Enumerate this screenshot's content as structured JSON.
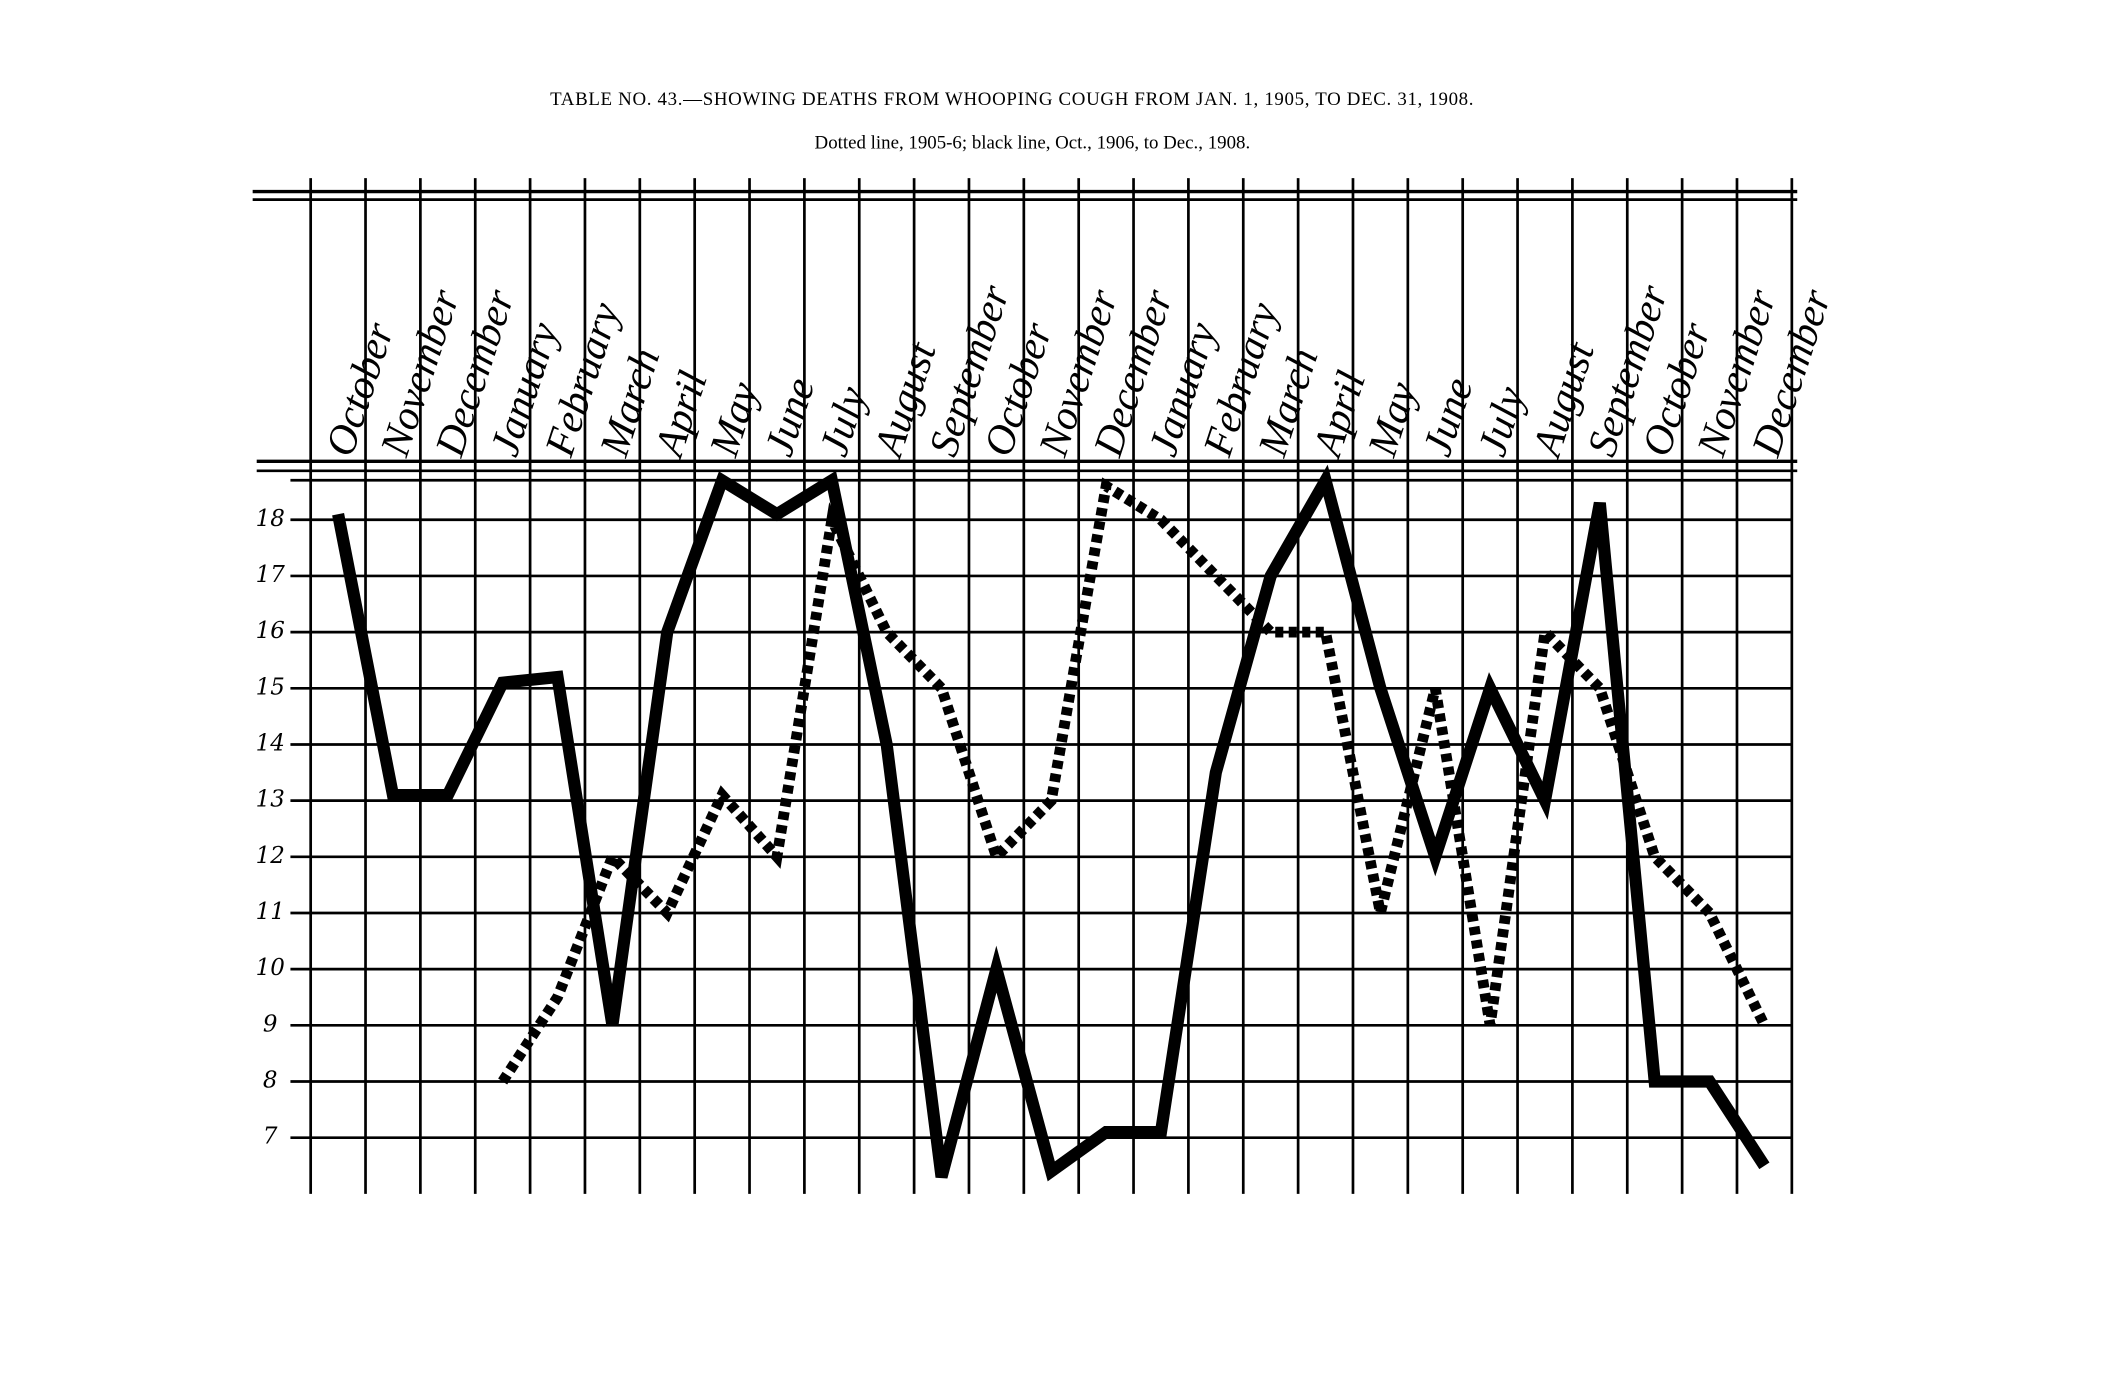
{
  "chart_data": {
    "type": "line",
    "title": "TABLE NO. 43.—SHOWING DEATHS FROM WHOOPING COUGH FROM JAN. 1, 1905, TO DEC. 31, 1908.",
    "subtitle": "Dotted line, 1905-6; black line, Oct., 1906, to Dec., 1908.",
    "categories": [
      "October",
      "November",
      "December",
      "January",
      "February",
      "March",
      "April",
      "May",
      "June",
      "July",
      "August",
      "September",
      "October",
      "November",
      "December",
      "January",
      "February",
      "March",
      "April",
      "May",
      "June",
      "July",
      "August",
      "September",
      "October",
      "November",
      "December"
    ],
    "series": [
      {
        "color": "#000000",
        "line_style": "solid",
        "values": [
          18.1,
          13.1,
          13.1,
          15.1,
          15.2,
          9,
          16,
          18.7,
          18.1,
          18.7,
          14,
          6.3,
          10,
          6.4,
          7.1,
          7.1,
          13.5,
          17,
          18.7,
          15,
          12,
          15,
          13,
          18.3,
          8,
          8,
          6.5
        ]
      },
      {
        "color": "#000000",
        "line_style": "dotted",
        "values": [
          null,
          null,
          null,
          8,
          9.5,
          12,
          11,
          13.1,
          12,
          18,
          16,
          15,
          12,
          13,
          18.6,
          18,
          17,
          16,
          16,
          11,
          15,
          9,
          16,
          15,
          12,
          11,
          9
        ]
      }
    ],
    "ylim": [
      6,
      18.8
    ],
    "yticks": [
      7,
      8,
      9,
      10,
      11,
      12,
      13,
      14,
      15,
      16,
      17,
      18
    ],
    "grid": true
  }
}
